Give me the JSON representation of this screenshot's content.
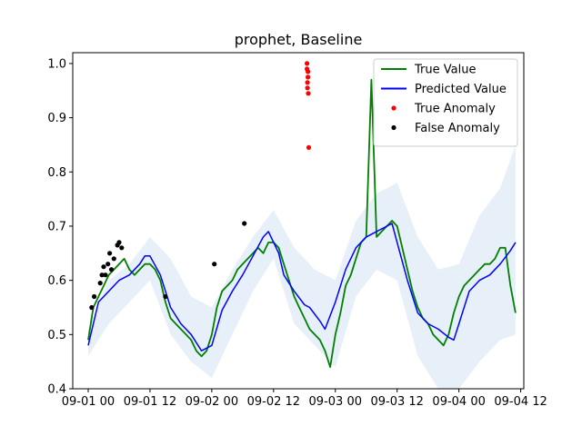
{
  "chart_data": {
    "type": "line",
    "title": "prophet, Baseline",
    "xlabel": "",
    "ylabel": "",
    "xlim": [
      "2024-09-01 00:00",
      "2024-09-04 12:00"
    ],
    "ylim": [
      0.4,
      1.02
    ],
    "x_ticks": [
      {
        "x": "2024-09-01 00:00",
        "label": "09-01 00"
      },
      {
        "x": "2024-09-01 12:00",
        "label": "09-01 12"
      },
      {
        "x": "2024-09-02 00:00",
        "label": "09-02 00"
      },
      {
        "x": "2024-09-02 12:00",
        "label": "09-02 12"
      },
      {
        "x": "2024-09-03 00:00",
        "label": "09-03 00"
      },
      {
        "x": "2024-09-03 12:00",
        "label": "09-03 12"
      },
      {
        "x": "2024-09-04 00:00",
        "label": "09-04 00"
      },
      {
        "x": "2024-09-04 12:00",
        "label": "09-04 12"
      }
    ],
    "y_ticks": [
      {
        "y": 0.4,
        "label": "0.4"
      },
      {
        "y": 0.5,
        "label": "0.5"
      },
      {
        "y": 0.6,
        "label": "0.6"
      },
      {
        "y": 0.7,
        "label": "0.7"
      },
      {
        "y": 0.8,
        "label": "0.8"
      },
      {
        "y": 0.9,
        "label": "0.9"
      },
      {
        "y": 1.0,
        "label": "1.0"
      }
    ],
    "grid": false,
    "legend_position": "top-right",
    "legend": [
      {
        "label": "True Value",
        "kind": "line",
        "color": "#008000"
      },
      {
        "label": "Predicted Value",
        "kind": "line",
        "color": "#0000ff"
      },
      {
        "label": "True Anomaly",
        "kind": "marker",
        "color": "#ff0000"
      },
      {
        "label": "False Anomaly",
        "kind": "marker",
        "color": "#000000"
      }
    ],
    "colors": {
      "true_value": "#008000",
      "predicted": "#0000ff",
      "interval": "#a8c8e8",
      "true_anomaly": "#ff0000",
      "false_anomaly": "#000000"
    },
    "series": [
      {
        "name": "True Value",
        "x": [
          "2024-09-01 00:00",
          "2024-09-01 01:00",
          "2024-09-01 02:00",
          "2024-09-01 03:00",
          "2024-09-01 04:00",
          "2024-09-01 05:00",
          "2024-09-01 06:00",
          "2024-09-01 07:00",
          "2024-09-01 08:00",
          "2024-09-01 09:00",
          "2024-09-01 10:00",
          "2024-09-01 11:00",
          "2024-09-01 12:00",
          "2024-09-01 13:00",
          "2024-09-01 14:00",
          "2024-09-01 15:00",
          "2024-09-01 16:00",
          "2024-09-01 17:00",
          "2024-09-01 18:00",
          "2024-09-01 19:00",
          "2024-09-01 20:00",
          "2024-09-01 21:00",
          "2024-09-01 22:00",
          "2024-09-01 23:00",
          "2024-09-02 00:00",
          "2024-09-02 01:00",
          "2024-09-02 02:00",
          "2024-09-02 03:00",
          "2024-09-02 04:00",
          "2024-09-02 05:00",
          "2024-09-02 06:00",
          "2024-09-02 07:00",
          "2024-09-02 08:00",
          "2024-09-02 09:00",
          "2024-09-02 10:00",
          "2024-09-02 11:00",
          "2024-09-02 12:00",
          "2024-09-02 13:00",
          "2024-09-02 14:00",
          "2024-09-02 15:00",
          "2024-09-02 16:00",
          "2024-09-02 17:00",
          "2024-09-02 18:00",
          "2024-09-02 19:00",
          "2024-09-02 20:00",
          "2024-09-02 21:00",
          "2024-09-02 22:00",
          "2024-09-02 23:00",
          "2024-09-03 00:00",
          "2024-09-03 01:00",
          "2024-09-03 02:00",
          "2024-09-03 03:00",
          "2024-09-03 04:00",
          "2024-09-03 05:00",
          "2024-09-03 06:00",
          "2024-09-03 07:00",
          "2024-09-03 08:00",
          "2024-09-03 09:00",
          "2024-09-03 10:00",
          "2024-09-03 11:00",
          "2024-09-03 12:00",
          "2024-09-03 13:00",
          "2024-09-03 14:00",
          "2024-09-03 15:00",
          "2024-09-03 16:00",
          "2024-09-03 17:00",
          "2024-09-03 18:00",
          "2024-09-03 19:00",
          "2024-09-03 20:00",
          "2024-09-03 21:00",
          "2024-09-03 22:00",
          "2024-09-03 23:00",
          "2024-09-04 00:00",
          "2024-09-04 01:00",
          "2024-09-04 02:00",
          "2024-09-04 03:00",
          "2024-09-04 04:00",
          "2024-09-04 05:00",
          "2024-09-04 06:00",
          "2024-09-04 07:00",
          "2024-09-04 08:00",
          "2024-09-04 09:00",
          "2024-09-04 10:00",
          "2024-09-04 11:00"
        ],
        "values": [
          0.49,
          0.55,
          0.57,
          0.59,
          0.61,
          0.62,
          0.63,
          0.64,
          0.62,
          0.61,
          0.62,
          0.63,
          0.63,
          0.62,
          0.6,
          0.56,
          0.53,
          0.52,
          0.51,
          0.5,
          0.49,
          0.47,
          0.46,
          0.47,
          0.5,
          0.55,
          0.58,
          0.59,
          0.6,
          0.62,
          0.63,
          0.64,
          0.65,
          0.66,
          0.65,
          0.67,
          0.67,
          0.66,
          0.63,
          0.6,
          0.57,
          0.55,
          0.53,
          0.51,
          0.5,
          0.49,
          0.47,
          0.44,
          0.5,
          0.54,
          0.59,
          0.61,
          0.64,
          0.67,
          0.68,
          0.97,
          0.68,
          0.69,
          0.7,
          0.71,
          0.7,
          0.66,
          0.62,
          0.58,
          0.55,
          0.53,
          0.52,
          0.5,
          0.49,
          0.48,
          0.5,
          0.54,
          0.57,
          0.59,
          0.6,
          0.61,
          0.62,
          0.63,
          0.63,
          0.64,
          0.66,
          0.66,
          0.59,
          0.54
        ]
      },
      {
        "name": "Predicted Value",
        "x": [
          "2024-09-01 00:00",
          "2024-09-01 02:00",
          "2024-09-01 04:00",
          "2024-09-01 06:00",
          "2024-09-01 08:00",
          "2024-09-01 10:00",
          "2024-09-01 11:00",
          "2024-09-01 12:00",
          "2024-09-01 14:00",
          "2024-09-01 16:00",
          "2024-09-01 18:00",
          "2024-09-01 20:00",
          "2024-09-01 22:00",
          "2024-09-02 00:00",
          "2024-09-02 02:00",
          "2024-09-02 04:00",
          "2024-09-02 06:00",
          "2024-09-02 08:00",
          "2024-09-02 10:00",
          "2024-09-02 11:00",
          "2024-09-02 13:00",
          "2024-09-02 14:00",
          "2024-09-02 16:00",
          "2024-09-02 18:00",
          "2024-09-02 19:00",
          "2024-09-02 21:00",
          "2024-09-02 22:00",
          "2024-09-03 00:00",
          "2024-09-03 02:00",
          "2024-09-03 04:00",
          "2024-09-03 06:00",
          "2024-09-03 08:00",
          "2024-09-03 10:00",
          "2024-09-03 11:00",
          "2024-09-03 12:00",
          "2024-09-03 14:00",
          "2024-09-03 16:00",
          "2024-09-03 18:00",
          "2024-09-03 20:00",
          "2024-09-03 22:00",
          "2024-09-03 23:00",
          "2024-09-04 00:00",
          "2024-09-04 02:00",
          "2024-09-04 04:00",
          "2024-09-04 06:00",
          "2024-09-04 08:00",
          "2024-09-04 10:00",
          "2024-09-04 11:00"
        ],
        "values": [
          0.48,
          0.56,
          0.58,
          0.6,
          0.61,
          0.63,
          0.645,
          0.645,
          0.61,
          0.55,
          0.52,
          0.5,
          0.47,
          0.48,
          0.545,
          0.58,
          0.61,
          0.645,
          0.68,
          0.69,
          0.65,
          0.61,
          0.58,
          0.555,
          0.55,
          0.525,
          0.51,
          0.56,
          0.62,
          0.66,
          0.68,
          0.69,
          0.7,
          0.705,
          0.67,
          0.6,
          0.54,
          0.52,
          0.51,
          0.495,
          0.49,
          0.52,
          0.58,
          0.6,
          0.61,
          0.63,
          0.655,
          0.67
        ]
      }
    ],
    "interval": {
      "x": [
        "2024-09-01 00:00",
        "2024-09-01 04:00",
        "2024-09-01 08:00",
        "2024-09-01 12:00",
        "2024-09-01 16:00",
        "2024-09-01 20:00",
        "2024-09-02 00:00",
        "2024-09-02 04:00",
        "2024-09-02 08:00",
        "2024-09-02 12:00",
        "2024-09-02 16:00",
        "2024-09-02 20:00",
        "2024-09-03 00:00",
        "2024-09-03 04:00",
        "2024-09-03 08:00",
        "2024-09-03 12:00",
        "2024-09-03 16:00",
        "2024-09-03 20:00",
        "2024-09-04 00:00",
        "2024-09-04 04:00",
        "2024-09-04 08:00",
        "2024-09-04 11:00"
      ],
      "upper": [
        0.51,
        0.6,
        0.63,
        0.68,
        0.64,
        0.57,
        0.55,
        0.62,
        0.68,
        0.73,
        0.66,
        0.62,
        0.6,
        0.71,
        0.76,
        0.78,
        0.68,
        0.62,
        0.63,
        0.72,
        0.77,
        0.85
      ],
      "lower": [
        0.46,
        0.52,
        0.56,
        0.6,
        0.5,
        0.45,
        0.42,
        0.5,
        0.58,
        0.64,
        0.52,
        0.48,
        0.44,
        0.57,
        0.62,
        0.6,
        0.46,
        0.4,
        0.4,
        0.45,
        0.49,
        0.5
      ]
    },
    "true_anomalies": {
      "x": [
        "2024-09-02 18:30",
        "2024-09-02 18:30",
        "2024-09-02 18:40",
        "2024-09-02 18:40",
        "2024-09-02 18:35",
        "2024-09-02 18:35",
        "2024-09-02 18:45",
        "2024-09-02 18:50"
      ],
      "values": [
        1.0,
        0.99,
        0.985,
        0.975,
        0.965,
        0.955,
        0.945,
        0.845
      ]
    },
    "false_anomalies": {
      "x": [
        "2024-09-01 00:40",
        "2024-09-01 01:10",
        "2024-09-01 02:20",
        "2024-09-01 02:40",
        "2024-09-01 03:00",
        "2024-09-01 03:20",
        "2024-09-01 03:50",
        "2024-09-01 04:10",
        "2024-09-01 04:30",
        "2024-09-01 05:00",
        "2024-09-01 05:40",
        "2024-09-01 06:00",
        "2024-09-01 06:30",
        "2024-09-01 15:00",
        "2024-09-02 00:30",
        "2024-09-02 06:20"
      ],
      "values": [
        0.55,
        0.57,
        0.595,
        0.61,
        0.625,
        0.61,
        0.63,
        0.65,
        0.62,
        0.64,
        0.665,
        0.67,
        0.66,
        0.57,
        0.63,
        0.705
      ]
    }
  }
}
